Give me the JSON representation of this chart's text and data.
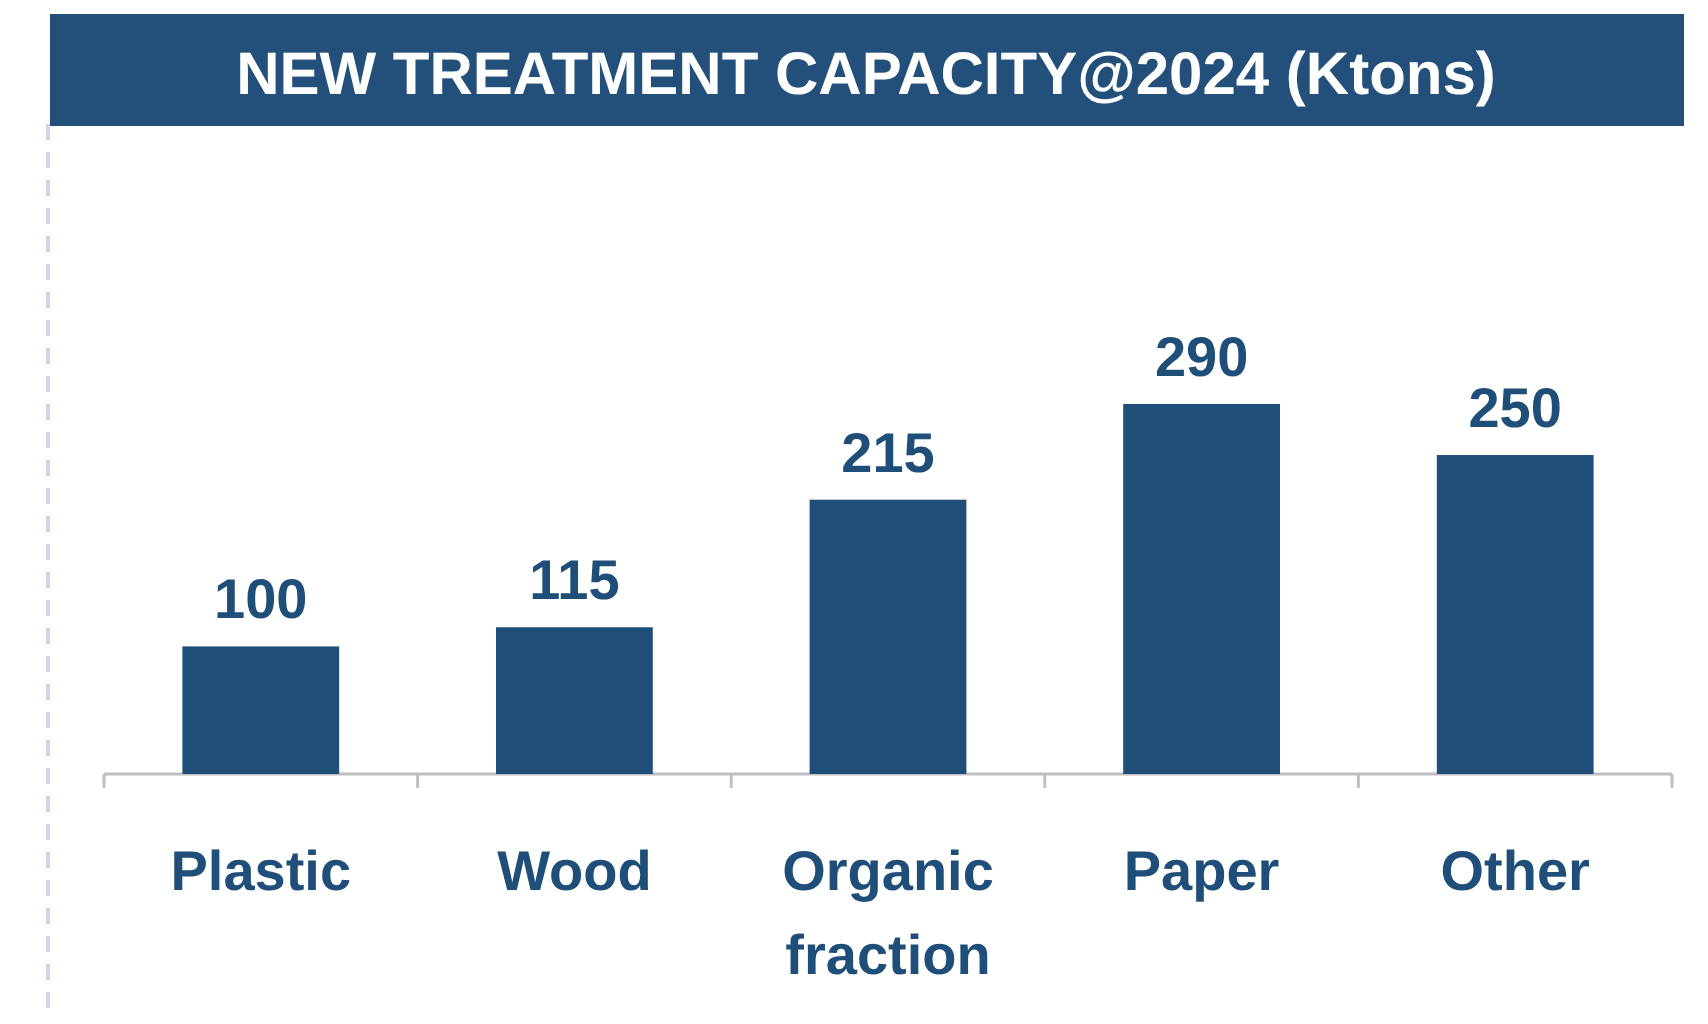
{
  "chart_data": {
    "type": "bar",
    "title": "NEW TREATMENT CAPACITY@2024 (Ktons)",
    "categories": [
      "Plastic",
      "Wood",
      "Organic fraction",
      "Paper",
      "Other"
    ],
    "values": [
      100,
      115,
      215,
      290,
      250
    ],
    "color": "#1f4e79",
    "data_labels": true
  }
}
